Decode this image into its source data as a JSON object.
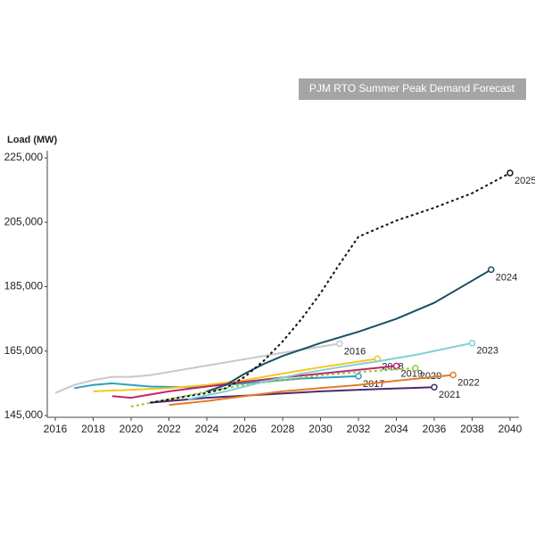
{
  "chart_data": {
    "type": "line",
    "title": "PJM RTO Summer Peak Demand Forecast",
    "y_label": "Load (MW)",
    "xlim": [
      2016,
      2040
    ],
    "xticks": [
      2016,
      2018,
      2020,
      2022,
      2024,
      2026,
      2028,
      2030,
      2032,
      2034,
      2036,
      2038,
      2040
    ],
    "ylim": [
      145000,
      225000
    ],
    "yticks": [
      {
        "value": 145000,
        "label": "145,000"
      },
      {
        "value": 165000,
        "label": "165,000"
      },
      {
        "value": 185000,
        "label": "185,000"
      },
      {
        "value": 205000,
        "label": "205,000"
      },
      {
        "value": 225000,
        "label": "225,000"
      }
    ],
    "series": [
      {
        "name": "2016",
        "color": "#c8c8c8",
        "x": [
          2016,
          2017,
          2018,
          2019,
          2020,
          2021,
          2022,
          2024,
          2026,
          2028,
          2031
        ],
        "values": [
          152000,
          154500,
          156000,
          157000,
          157000,
          157500,
          158500,
          160500,
          162500,
          164500,
          167300
        ]
      },
      {
        "name": "2017",
        "color": "#2f9fc0",
        "x": [
          2017,
          2018,
          2019,
          2020,
          2021,
          2023,
          2025,
          2027,
          2029,
          2032
        ],
        "values": [
          153500,
          154500,
          155000,
          154500,
          154000,
          153800,
          154500,
          155500,
          156500,
          157200
        ]
      },
      {
        "name": "2018",
        "color": "#f2c81e",
        "x": [
          2018,
          2020,
          2022,
          2024,
          2026,
          2028,
          2030,
          2033
        ],
        "values": [
          152500,
          153000,
          153500,
          154500,
          156000,
          158000,
          160000,
          162600
        ]
      },
      {
        "name": "2019",
        "color": "#c0266e",
        "x": [
          2019,
          2020,
          2022,
          2024,
          2026,
          2028,
          2030,
          2032,
          2034
        ],
        "values": [
          151000,
          150500,
          152500,
          154000,
          155500,
          156800,
          158000,
          159200,
          160400
        ]
      },
      {
        "name": "2020",
        "color": "#9ac43a",
        "dashed": true,
        "x": [
          2020,
          2022,
          2024,
          2026,
          2028,
          2030,
          2032,
          2035
        ],
        "values": [
          147800,
          150000,
          152500,
          154500,
          156000,
          157500,
          158500,
          159700
        ]
      },
      {
        "name": "2021",
        "color": "#4a2a6e",
        "x": [
          2021,
          2024,
          2027,
          2030,
          2033,
          2036
        ],
        "values": [
          149000,
          150500,
          151500,
          152500,
          153200,
          153800
        ]
      },
      {
        "name": "2022",
        "color": "#e57b25",
        "x": [
          2022,
          2024,
          2026,
          2028,
          2030,
          2032,
          2034,
          2037
        ],
        "values": [
          148300,
          149500,
          151000,
          152500,
          153500,
          154500,
          155800,
          157600
        ]
      },
      {
        "name": "2023",
        "color": "#7fd0d6",
        "x": [
          2023,
          2025,
          2027,
          2029,
          2031,
          2033,
          2035,
          2038
        ],
        "values": [
          150000,
          152500,
          155500,
          158000,
          160000,
          161800,
          163800,
          167500
        ]
      },
      {
        "name": "2024",
        "color": "#1d4e63",
        "x": [
          2024,
          2025,
          2026,
          2027,
          2028,
          2029,
          2030,
          2032,
          2034,
          2036,
          2039
        ],
        "values": [
          152500,
          154500,
          158000,
          161000,
          163500,
          165500,
          167500,
          171000,
          175000,
          180000,
          190300
        ]
      },
      {
        "name": "2025",
        "color": "#111111",
        "dashed": true,
        "x": [
          2021,
          2023,
          2024,
          2025,
          2026,
          2027,
          2028,
          2029,
          2030,
          2031,
          2032,
          2034,
          2036,
          2038,
          2040
        ],
        "values": [
          149000,
          151000,
          152000,
          153500,
          157000,
          162000,
          168000,
          175000,
          183000,
          192000,
          200500,
          205500,
          209500,
          214000,
          220300
        ]
      }
    ]
  }
}
